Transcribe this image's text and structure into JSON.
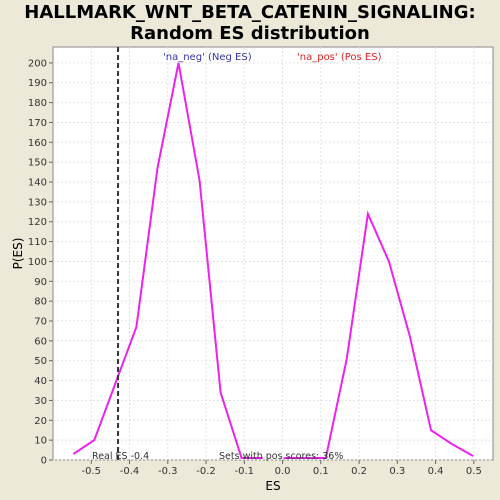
{
  "chart_data": {
    "type": "line",
    "title_line1": "HALLMARK_WNT_BETA_CATENIN_SIGNALING:",
    "title_line2": "Random ES distribution",
    "xlabel": "ES",
    "ylabel": "P(ES)",
    "xlim": [
      -0.6,
      0.55
    ],
    "ylim": [
      0,
      208
    ],
    "x_ticks": [
      -0.5,
      -0.4,
      -0.3,
      -0.2,
      -0.1,
      0.0,
      0.1,
      0.2,
      0.3,
      0.4,
      0.5
    ],
    "x_tick_labels": [
      "-0.5",
      "-0.4",
      "-0.3",
      "-0.2",
      "-0.1",
      "0.0",
      "0.1",
      "0.2",
      "0.3",
      "0.4",
      "0.5"
    ],
    "y_ticks": [
      0,
      10,
      20,
      30,
      40,
      50,
      60,
      70,
      80,
      90,
      100,
      110,
      120,
      130,
      140,
      150,
      160,
      170,
      180,
      190,
      200
    ],
    "grid": true,
    "series": [
      {
        "name": "'na_neg' (Neg ES)",
        "legend_color": "#3333aa",
        "line_color": "#ee22ee",
        "x": [
          -0.547,
          -0.492,
          -0.382,
          -0.327,
          -0.272,
          -0.217,
          -0.162,
          -0.107,
          -0.052
        ],
        "y": [
          3,
          10,
          67,
          147,
          200,
          141,
          34,
          1,
          1
        ]
      },
      {
        "name": "'na_pos' (Pos ES)",
        "legend_color": "#dd2222",
        "line_color": "#ee22ee",
        "x": [
          0.003,
          0.058,
          0.113,
          0.168,
          0.223,
          0.278,
          0.333,
          0.388,
          0.443,
          0.498
        ],
        "y": [
          1,
          1,
          1,
          51,
          124,
          100,
          62,
          15,
          8,
          2
        ]
      }
    ],
    "real_es": {
      "x": -0.43,
      "label": "Real ES -0.4"
    },
    "annotation": "Sets with pos scores: 36%"
  }
}
